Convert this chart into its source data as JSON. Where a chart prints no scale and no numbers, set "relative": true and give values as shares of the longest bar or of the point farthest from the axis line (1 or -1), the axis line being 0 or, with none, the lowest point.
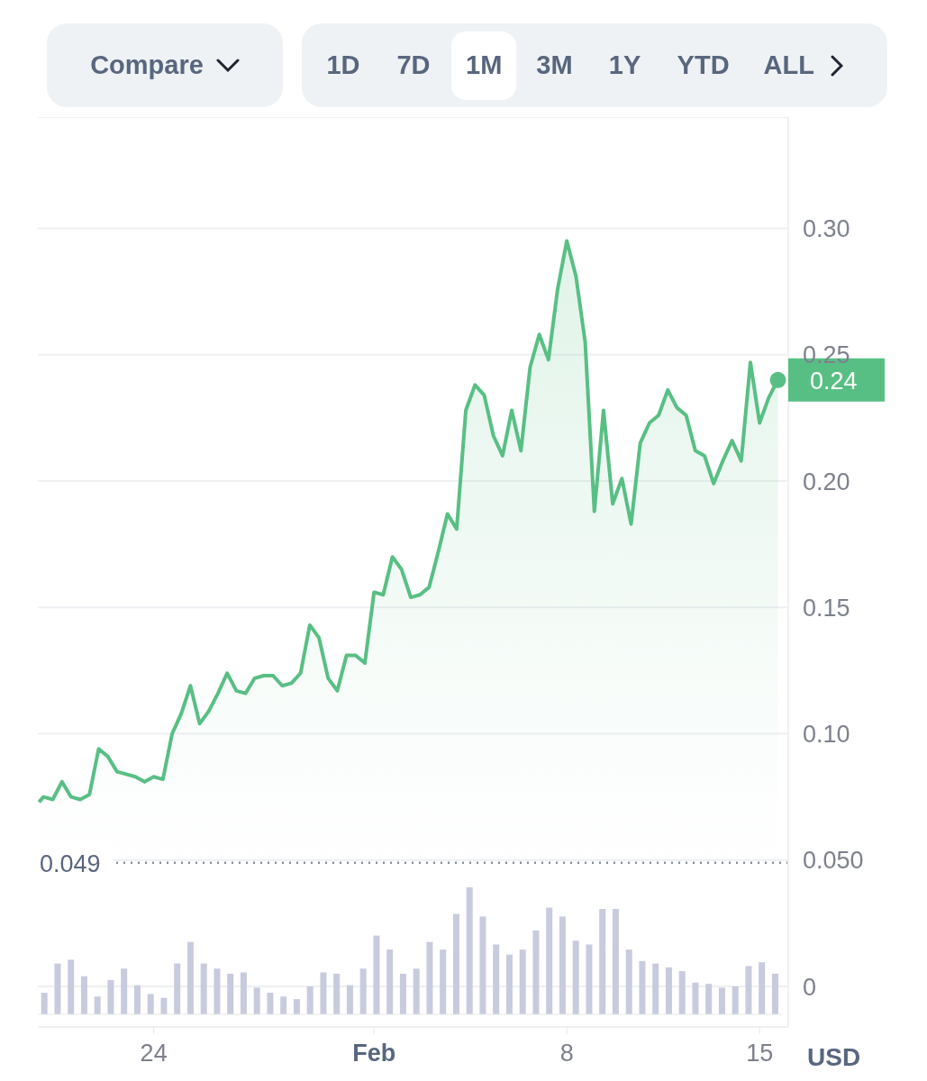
{
  "chart_data": [
    {
      "type": "area",
      "ylabel": "USD",
      "grid": "y",
      "color": "#58bf84",
      "x": [
        "--01-19T20:00",
        "--01-20T00:00",
        "--01-20T08:00",
        "--01-20T16:00",
        "--01-21T00:00",
        "--01-21T08:00",
        "--01-21T16:00",
        "--01-22T00:00",
        "--01-22T08:00",
        "--01-22T16:00",
        "--01-23T00:00",
        "--01-23T08:00",
        "--01-23T16:00",
        "--01-24T00:00",
        "--01-24T08:00",
        "--01-24T16:00",
        "--01-25T00:00",
        "--01-25T08:00",
        "--01-25T16:00",
        "--01-26T00:00",
        "--01-26T08:00",
        "--01-26T16:00",
        "--01-27T00:00",
        "--01-27T08:00",
        "--01-27T16:00",
        "--01-28T00:00",
        "--01-28T08:00",
        "--01-28T16:00",
        "--01-29T00:00",
        "--01-29T08:00",
        "--01-29T16:00",
        "--01-30T00:00",
        "--01-30T08:00",
        "--01-30T16:00",
        "--01-31T00:00",
        "--01-31T08:00",
        "--01-31T16:00",
        "--02-01T00:00",
        "--02-01T08:00",
        "--02-01T16:00",
        "--02-02T00:00",
        "--02-02T08:00",
        "--02-02T16:00",
        "--02-03T00:00",
        "--02-03T08:00",
        "--02-03T16:00",
        "--02-04T00:00",
        "--02-04T08:00",
        "--02-04T16:00",
        "--02-05T00:00",
        "--02-05T08:00",
        "--02-05T16:00",
        "--02-06T00:00",
        "--02-06T08:00",
        "--02-06T16:00",
        "--02-07T00:00",
        "--02-07T08:00",
        "--02-07T16:00",
        "--02-08T00:00",
        "--02-08T08:00",
        "--02-08T16:00",
        "--02-09T00:00",
        "--02-09T08:00",
        "--02-09T16:00",
        "--02-10T00:00",
        "--02-10T08:00",
        "--02-10T16:00",
        "--02-11T00:00",
        "--02-11T08:00",
        "--02-11T16:00",
        "--02-12T00:00",
        "--02-12T08:00",
        "--02-12T16:00",
        "--02-13T00:00",
        "--02-13T08:00",
        "--02-13T16:00",
        "--02-14T00:00",
        "--02-14T08:00",
        "--02-14T16:00",
        "--02-15T00:00",
        "--02-15T08:00",
        "--02-15T16:00"
      ],
      "values": [
        0.073,
        0.075,
        0.074,
        0.081,
        0.075,
        0.074,
        0.076,
        0.094,
        0.091,
        0.085,
        0.084,
        0.083,
        0.081,
        0.083,
        0.082,
        0.1,
        0.108,
        0.119,
        0.104,
        0.109,
        0.116,
        0.124,
        0.117,
        0.116,
        0.122,
        0.123,
        0.123,
        0.119,
        0.12,
        0.124,
        0.143,
        0.138,
        0.122,
        0.117,
        0.131,
        0.131,
        0.128,
        0.156,
        0.155,
        0.17,
        0.165,
        0.154,
        0.155,
        0.158,
        0.172,
        0.187,
        0.181,
        0.228,
        0.238,
        0.234,
        0.218,
        0.21,
        0.228,
        0.212,
        0.245,
        0.258,
        0.248,
        0.276,
        0.295,
        0.281,
        0.255,
        0.188,
        0.228,
        0.191,
        0.201,
        0.183,
        0.215,
        0.223,
        0.226,
        0.236,
        0.229,
        0.226,
        0.212,
        0.21,
        0.199,
        0.208,
        0.216,
        0.208,
        0.247,
        0.223,
        0.233,
        0.24
      ],
      "xlim": [
        "--01-19T19:00",
        "--02-16T01:00"
      ],
      "xticks": [
        {
          "value": "--01-24",
          "label": "24"
        },
        {
          "value": "--02-01",
          "label": "Feb"
        },
        {
          "value": "--02-08",
          "label": "8"
        },
        {
          "value": "--02-15",
          "label": "15"
        }
      ],
      "ylim": [
        -0.016,
        0.344
      ],
      "yticks": [
        0,
        {
          "value": 0.05,
          "label": "0.050"
        },
        {
          "value": 0.1,
          "label": "0.10"
        },
        {
          "value": 0.15,
          "label": "0.15"
        },
        {
          "value": 0.2,
          "label": "0.20"
        },
        {
          "value": 0.25,
          "label": "0.25"
        },
        {
          "value": 0.3,
          "label": "0.30"
        }
      ],
      "ref_lines": [
        {
          "axis": "y",
          "value": 0.049,
          "label": "0.049",
          "color": "#8a8f9c",
          "line_style": "dotted"
        }
      ],
      "annotations": [
        "Compare",
        "1D",
        "7D",
        "1M",
        "3M",
        "1Y",
        "YTD",
        "ALL",
        {
          "text": "0.24",
          "x": "--02-15T16:00",
          "y": 0.24
        }
      ]
    },
    {
      "type": "bar",
      "relative": true,
      "color": "#c8cbdd",
      "categories": [
        null,
        null,
        null,
        null,
        null,
        null,
        null,
        null,
        null,
        null,
        null,
        null,
        null,
        null,
        null,
        null,
        null,
        null,
        null,
        null,
        null,
        null,
        null,
        null,
        null,
        null,
        null,
        null,
        null,
        null,
        null,
        null,
        null,
        null,
        null,
        null,
        null,
        null,
        null,
        null,
        null,
        null,
        null,
        null,
        null,
        null,
        null,
        null,
        null,
        null,
        null,
        null,
        null,
        null,
        null,
        null
      ],
      "values": [
        0.17,
        0.4,
        0.43,
        0.3,
        0.14,
        0.27,
        0.36,
        0.23,
        0.16,
        0.13,
        0.4,
        0.57,
        0.4,
        0.36,
        0.32,
        0.33,
        0.21,
        0.17,
        0.14,
        0.12,
        0.22,
        0.33,
        0.32,
        0.23,
        0.36,
        0.62,
        0.51,
        0.32,
        0.36,
        0.57,
        0.51,
        0.79,
        1,
        0.77,
        0.55,
        0.47,
        0.51,
        0.66,
        0.84,
        0.77,
        0.58,
        0.55,
        0.83,
        0.83,
        0.51,
        0.42,
        0.4,
        0.37,
        0.34,
        0.25,
        0.24,
        0.21,
        0.22,
        0.38,
        0.41,
        0.32
      ]
    }
  ]
}
